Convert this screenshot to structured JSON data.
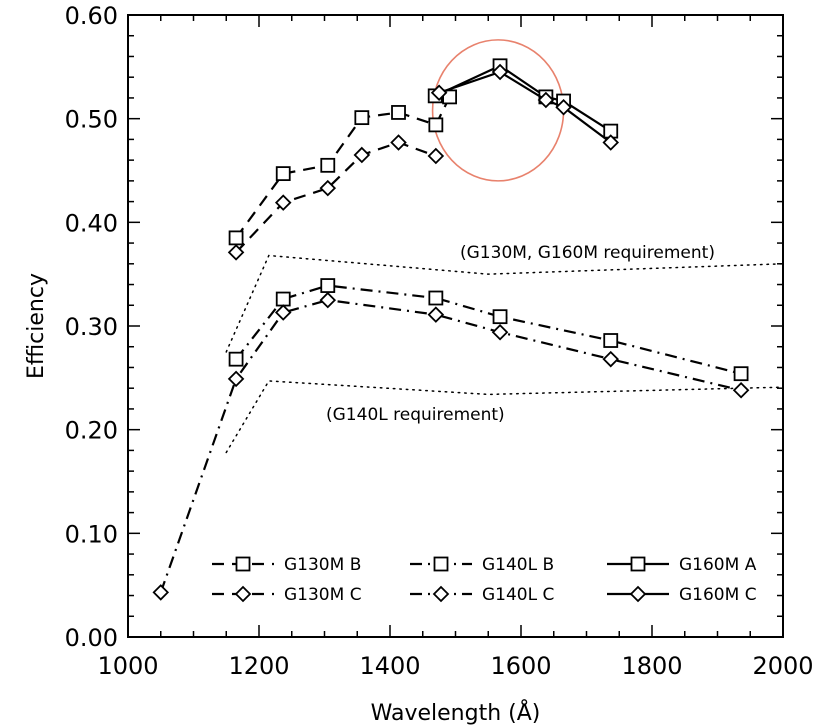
{
  "chart_data": {
    "type": "line",
    "xlabel": "Wavelength (Å)",
    "ylabel": "Efficiency",
    "xlim": [
      1000,
      2000
    ],
    "ylim": [
      0.0,
      0.6
    ],
    "xticks": [
      "1000",
      "1200",
      "1400",
      "1600",
      "1800",
      "2000"
    ],
    "yticks": [
      "0.00",
      "0.10",
      "0.20",
      "0.30",
      "0.40",
      "0.50",
      "0.60"
    ],
    "grid": false,
    "series": [
      {
        "name": "G130M B",
        "line": "dashed",
        "marker": "square",
        "x": [
          1165,
          1237,
          1305,
          1357,
          1413,
          1470,
          1491
        ],
        "y": [
          0.385,
          0.447,
          0.455,
          0.501,
          0.506,
          0.494,
          0.521
        ]
      },
      {
        "name": "G130M C",
        "line": "dashed",
        "marker": "diamond",
        "x": [
          1165,
          1237,
          1305,
          1357,
          1413,
          1470
        ],
        "y": [
          0.371,
          0.419,
          0.433,
          0.465,
          0.477,
          0.464
        ]
      },
      {
        "name": "G140L B",
        "line": "dashdot",
        "marker": "square",
        "x": [
          1165,
          1237,
          1305,
          1470,
          1568,
          1737,
          1936
        ],
        "y": [
          0.268,
          0.326,
          0.339,
          0.327,
          0.309,
          0.286,
          0.254
        ]
      },
      {
        "name": "G140L C",
        "line": "dashdot",
        "marker": "diamond",
        "x": [
          1050,
          1165,
          1237,
          1305,
          1470,
          1568,
          1737,
          1936
        ],
        "y": [
          0.043,
          0.249,
          0.313,
          0.325,
          0.311,
          0.294,
          0.268,
          0.238
        ]
      },
      {
        "name": "G160M A",
        "line": "solid",
        "marker": "square",
        "x": [
          1469,
          1568,
          1638,
          1665,
          1737
        ],
        "y": [
          0.522,
          0.551,
          0.521,
          0.517,
          0.488
        ]
      },
      {
        "name": "G160M C",
        "line": "solid",
        "marker": "diamond",
        "x": [
          1475,
          1568,
          1638,
          1665,
          1737
        ],
        "y": [
          0.525,
          0.545,
          0.518,
          0.511,
          0.477
        ]
      }
    ],
    "requirements": [
      {
        "label": "(G130M, G160M requirement)",
        "x": [
          1150,
          1215,
          1550,
          2000
        ],
        "y": [
          0.275,
          0.368,
          0.35,
          0.36
        ]
      },
      {
        "label": "(G140L requirement)",
        "x": [
          1150,
          1215,
          1550,
          2000
        ],
        "y": [
          0.178,
          0.247,
          0.234,
          0.241
        ]
      }
    ],
    "highlight_ellipse": {
      "color": "#e8826d",
      "cx": 1565,
      "cy": 0.508,
      "rx": 100,
      "ry": 0.068
    },
    "legend_placement": "bottom-center"
  }
}
